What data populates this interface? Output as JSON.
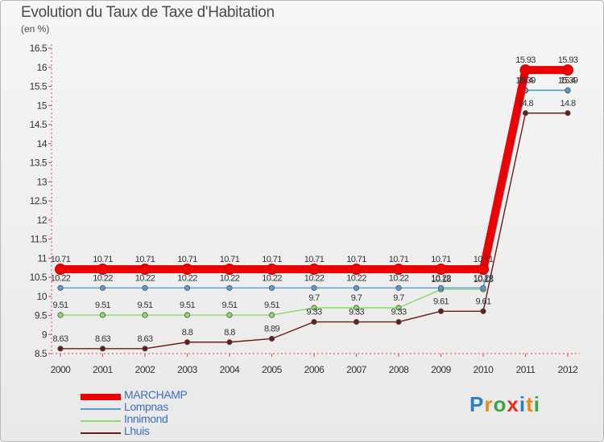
{
  "title": "Evolution du Taux de Taxe d'Habitation",
  "subtitle": "(en %)",
  "logo": "Proxiti",
  "chart_data": {
    "type": "line",
    "title": "Evolution du Taux de Taxe d'Habitation",
    "ylabel": "(en %)",
    "xlabel": "",
    "categories": [
      "2000",
      "2001",
      "2002",
      "2003",
      "2004",
      "2005",
      "2006",
      "2007",
      "2008",
      "2009",
      "2010",
      "2011",
      "2012"
    ],
    "ylim": [
      8.5,
      16.5
    ],
    "yticks": [
      8.5,
      9,
      9.5,
      10,
      10.5,
      11,
      11.5,
      12,
      12.5,
      13,
      13.5,
      14,
      14.5,
      15,
      15.5,
      16,
      16.5
    ],
    "grid": false,
    "legend_position": "bottom-left",
    "series": [
      {
        "name": "MARCHAMP",
        "color": "#ee0000",
        "values": [
          10.71,
          10.71,
          10.71,
          10.71,
          10.71,
          10.71,
          10.71,
          10.71,
          10.71,
          10.71,
          10.71,
          15.93,
          15.93
        ]
      },
      {
        "name": "Lompnas",
        "color": "#5b9bd5",
        "values": [
          10.22,
          10.22,
          10.22,
          10.22,
          10.22,
          10.22,
          10.22,
          10.22,
          10.22,
          10.22,
          10.22,
          15.4,
          15.4
        ]
      },
      {
        "name": "Innimond",
        "color": "#88dd66",
        "values": [
          9.51,
          9.51,
          9.51,
          9.51,
          9.51,
          9.51,
          9.7,
          9.7,
          9.7,
          10.18,
          10.18,
          15.39,
          15.39
        ]
      },
      {
        "name": "Lhuis",
        "color": "#6b1a1a",
        "values": [
          8.63,
          8.63,
          8.63,
          8.8,
          8.8,
          8.89,
          9.33,
          9.33,
          9.33,
          9.61,
          9.61,
          14.8,
          14.8
        ]
      }
    ]
  }
}
